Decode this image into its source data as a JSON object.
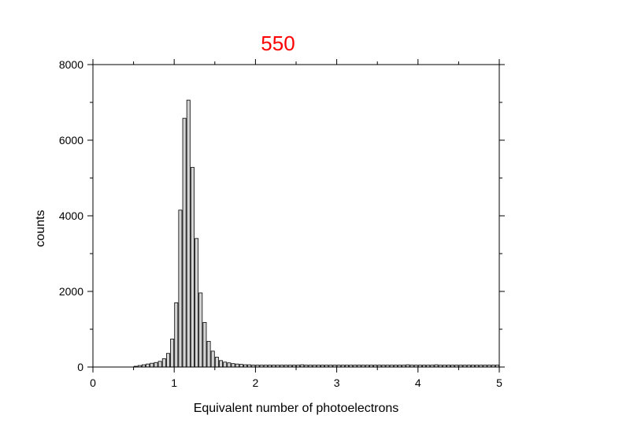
{
  "chart_data": {
    "type": "bar",
    "title": "550",
    "xlabel": "Equivalent number of photoelectrons",
    "ylabel": "counts",
    "xlim": [
      0,
      5
    ],
    "ylim": [
      0,
      8000
    ],
    "x_ticks": [
      "0",
      "1",
      "2",
      "3",
      "4",
      "5"
    ],
    "y_ticks": [
      "0",
      "2000",
      "4000",
      "6000",
      "8000"
    ],
    "grid": false,
    "bar_width": 0.05,
    "series": [
      {
        "x": [
          0.5,
          0.55,
          0.6,
          0.65,
          0.7,
          0.75,
          0.8,
          0.85,
          0.9,
          0.95,
          1.0,
          1.05,
          1.1,
          1.15,
          1.2,
          1.25,
          1.3,
          1.35,
          1.4,
          1.45,
          1.5,
          1.55,
          1.6,
          1.65,
          1.7,
          1.75,
          1.8,
          1.85,
          1.9,
          1.95,
          2.0,
          2.05,
          2.1,
          2.15,
          2.2,
          2.25,
          2.3,
          2.35,
          2.4,
          2.45,
          2.5,
          2.55,
          2.6,
          2.65,
          2.7,
          2.75,
          2.8,
          2.85,
          2.9,
          2.95,
          3.0,
          3.05,
          3.1,
          3.15,
          3.2,
          3.25,
          3.3,
          3.35,
          3.4,
          3.45,
          3.5,
          3.55,
          3.6,
          3.65,
          3.7,
          3.75,
          3.8,
          3.85,
          3.9,
          3.95,
          4.0,
          4.05,
          4.1,
          4.15,
          4.2,
          4.25,
          4.3,
          4.35,
          4.4,
          4.45,
          4.5,
          4.55,
          4.6,
          4.65,
          4.7,
          4.75,
          4.8,
          4.85,
          4.9,
          4.95
        ],
        "values": [
          20,
          40,
          60,
          80,
          100,
          120,
          150,
          220,
          360,
          740,
          1700,
          4150,
          6580,
          7060,
          5280,
          3400,
          1960,
          1180,
          680,
          420,
          260,
          170,
          130,
          110,
          90,
          80,
          70,
          60,
          60,
          50,
          50,
          50,
          50,
          50,
          50,
          50,
          50,
          50,
          50,
          50,
          50,
          60,
          50,
          50,
          50,
          50,
          50,
          50,
          50,
          50,
          50,
          50,
          50,
          50,
          50,
          50,
          50,
          50,
          50,
          50,
          50,
          50,
          50,
          50,
          50,
          50,
          50,
          60,
          50,
          50,
          50,
          50,
          50,
          50,
          60,
          50,
          50,
          50,
          50,
          50,
          50,
          50,
          50,
          50,
          50,
          50,
          50,
          50,
          50,
          50
        ]
      }
    ],
    "colors": {
      "bar_fill": "#d3d3d3",
      "bar_stroke": "#000000",
      "title": "#ff0000"
    }
  }
}
